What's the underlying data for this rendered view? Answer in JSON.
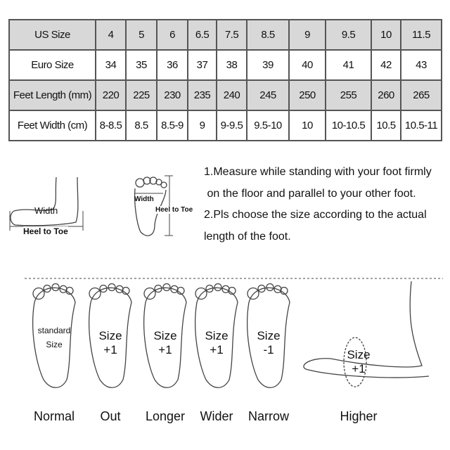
{
  "size_table": {
    "rows": [
      {
        "header": "US Size",
        "values": [
          "4",
          "5",
          "6",
          "6.5",
          "7.5",
          "8.5",
          "9",
          "9.5",
          "10",
          "11.5"
        ]
      },
      {
        "header": "Euro Size",
        "values": [
          "34",
          "35",
          "36",
          "37",
          "38",
          "39",
          "40",
          "41",
          "42",
          "43"
        ]
      },
      {
        "header": "Feet Length (mm)",
        "values": [
          "220",
          "225",
          "230",
          "235",
          "240",
          "245",
          "250",
          "255",
          "260",
          "265"
        ]
      },
      {
        "header": "Feet Width (cm)",
        "values": [
          "8-8.5",
          "8.5",
          "8.5-9",
          "9",
          "9-9.5",
          "9.5-10",
          "10",
          "10-10.5",
          "10.5",
          "10.5-11"
        ]
      }
    ],
    "shade_color": "#d8d8d8"
  },
  "measure_diagram": {
    "side_width": "Width",
    "side_length": "Heel to Toe",
    "top_width": "Width",
    "top_length": "Heel to Toe"
  },
  "instructions": {
    "line1": "1.Measure while standing with your foot firmly",
    "line2": " on the floor and parallel to your other foot.",
    "line3": "2.Pls choose the size according to the actual",
    "line4": "length of the foot."
  },
  "foot_types": [
    {
      "label": "Normal",
      "advice1": "standard",
      "advice2": "Size"
    },
    {
      "label": "Out",
      "advice1": "Size",
      "advice2": "+1"
    },
    {
      "label": "Longer",
      "advice1": "Size",
      "advice2": "+1"
    },
    {
      "label": "Wider",
      "advice1": "Size",
      "advice2": "+1"
    },
    {
      "label": "Narrow",
      "advice1": "Size",
      "advice2": "-1"
    },
    {
      "label": "Higher",
      "advice1": "Size",
      "advice2": "+1"
    }
  ]
}
